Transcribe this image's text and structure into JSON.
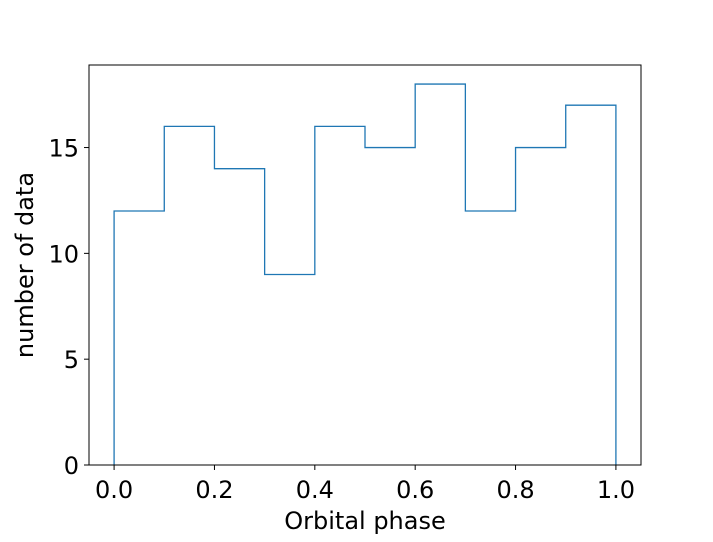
{
  "chart_data": {
    "type": "histogram",
    "title": "",
    "xlabel": "Orbital phase",
    "ylabel": "number of data",
    "bin_edges": [
      0.0,
      0.1,
      0.2,
      0.3,
      0.4,
      0.5,
      0.6,
      0.7,
      0.8,
      0.9,
      1.0
    ],
    "counts": [
      12,
      16,
      14,
      9,
      16,
      15,
      18,
      12,
      15,
      17
    ],
    "xlim": [
      -0.05,
      1.05
    ],
    "ylim": [
      0,
      18.9
    ],
    "xticks": [
      0.0,
      0.2,
      0.4,
      0.6,
      0.8,
      1.0
    ],
    "xtick_labels": [
      "0.0",
      "0.2",
      "0.4",
      "0.6",
      "0.8",
      "1.0"
    ],
    "yticks": [
      0,
      5,
      10,
      15
    ],
    "ytick_labels": [
      "0",
      "5",
      "10",
      "15"
    ],
    "grid": false,
    "legend": "none",
    "colors": {
      "line": "#1f77b4",
      "axes": "#000000",
      "background": "#ffffff"
    }
  }
}
